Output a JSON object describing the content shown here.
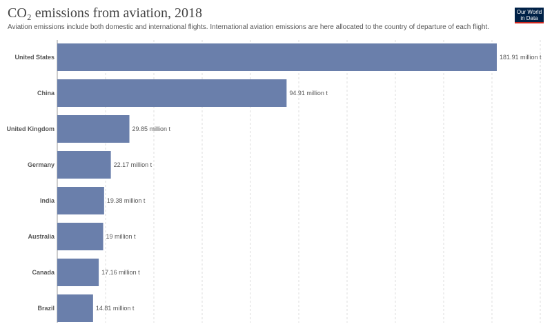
{
  "header": {
    "title": "CO₂ emissions from aviation, 2018",
    "subtitle": "Aviation emissions include both domestic and international flights. International aviation emissions are here allocated to the country of departure of each flight."
  },
  "logo": {
    "line1": "Our World",
    "line2": "in Data"
  },
  "colors": {
    "bar": "#6a7fab",
    "grid": "#dddddd",
    "logo_bg": "#002147",
    "logo_accent": "#ce261e"
  },
  "chart_data": {
    "type": "bar",
    "orientation": "horizontal",
    "title": "CO₂ emissions from aviation, 2018",
    "categories": [
      "United States",
      "China",
      "United Kingdom",
      "Germany",
      "India",
      "Australia",
      "Canada",
      "Brazil"
    ],
    "values": [
      181.91,
      94.91,
      29.85,
      22.17,
      19.38,
      19,
      17.16,
      14.81
    ],
    "value_labels": [
      "181.91 million t",
      "94.91 million t",
      "29.85 million t",
      "22.17 million t",
      "19.38 million t",
      "19 million t",
      "17.16 million t",
      "14.81 million t"
    ],
    "xlim": [
      0,
      181.91
    ],
    "grid": true,
    "legend": "none"
  }
}
